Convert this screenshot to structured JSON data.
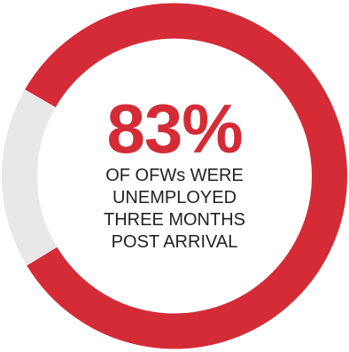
{
  "chart_data": {
    "type": "pie",
    "variant": "donut",
    "value_percent": 83,
    "value_label": "83%",
    "caption_lines": [
      "OF OFWs WERE",
      "UNEMPLOYED",
      "THREE MONTHS",
      "POST ARRIVAL"
    ],
    "slices": [
      {
        "value": 83,
        "color": "#d42b36"
      },
      {
        "value": 17,
        "color": "#e8e8e8"
      }
    ]
  }
}
